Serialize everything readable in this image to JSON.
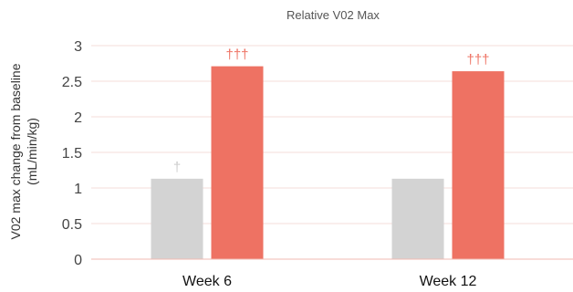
{
  "chart_data": {
    "type": "bar",
    "title": "Relative V02 Max",
    "ylabel_line1": "V02 max change from baseline",
    "ylabel_line2": "(mL/min/kg)",
    "xlabel": "",
    "categories": [
      "Week 6",
      "Week 12"
    ],
    "series": [
      {
        "values": [
          1.13,
          1.13
        ],
        "color": "#d3d3d3",
        "annotations": [
          "†",
          ""
        ]
      },
      {
        "values": [
          2.71,
          2.64
        ],
        "color": "#ee7263",
        "annotations": [
          "†††",
          "†††"
        ]
      }
    ],
    "ylim": [
      0,
      3
    ],
    "yticks": [
      "0",
      "0.5",
      "1",
      "1.5",
      "2",
      "2.5",
      "3"
    ],
    "grid": true,
    "legend": "none",
    "colors": {
      "grid": "#f6dcd8",
      "axis": "#f0b9b2",
      "annotation_grey": "#cccccc",
      "annotation_red": "#ee7263"
    }
  }
}
